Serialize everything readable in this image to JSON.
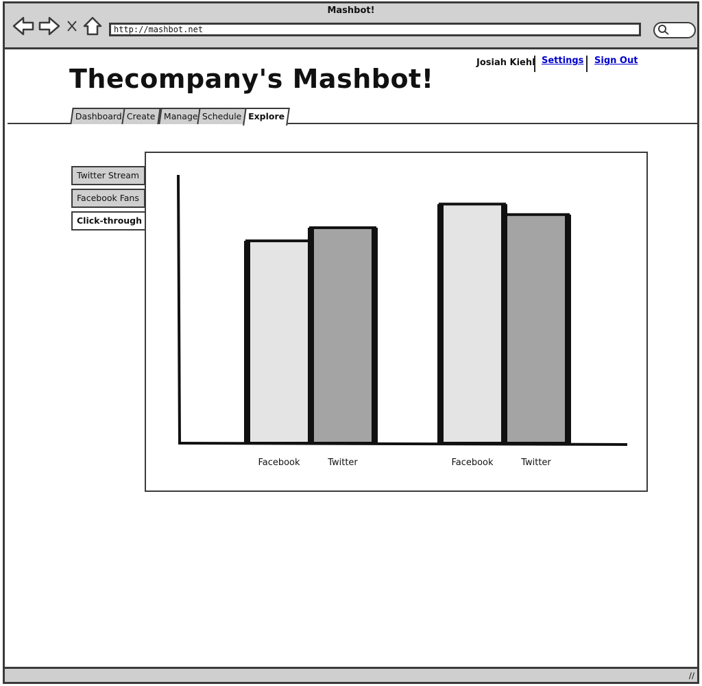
{
  "window": {
    "title": "Mashbot!"
  },
  "browser": {
    "url": "http://mashbot.net"
  },
  "header": {
    "user_name": "Josiah Kiehl",
    "settings_label": "Settings",
    "signout_label": "Sign Out",
    "title": "Thecompany's Mashbot!"
  },
  "tabs": [
    {
      "label": "Dashboard"
    },
    {
      "label": "Create"
    },
    {
      "label": "Manage"
    },
    {
      "label": "Schedule"
    },
    {
      "label": "Explore"
    }
  ],
  "sidebar": {
    "items": [
      {
        "label": "Twitter Stream"
      },
      {
        "label": "Facebook Fans"
      },
      {
        "label": "Click-through"
      }
    ]
  },
  "colors": {
    "light_bar": "#e4e4e4",
    "dark_bar": "#a4a4a4",
    "link": "#0000cc"
  },
  "chart_data": {
    "type": "bar",
    "title": "",
    "xlabel": "",
    "ylabel": "",
    "categories": [
      "Facebook",
      "Twitter",
      "Facebook",
      "Twitter"
    ],
    "values": [
      0.77,
      0.82,
      0.91,
      0.87
    ],
    "ylim": [
      0,
      1
    ],
    "grid": false
  }
}
